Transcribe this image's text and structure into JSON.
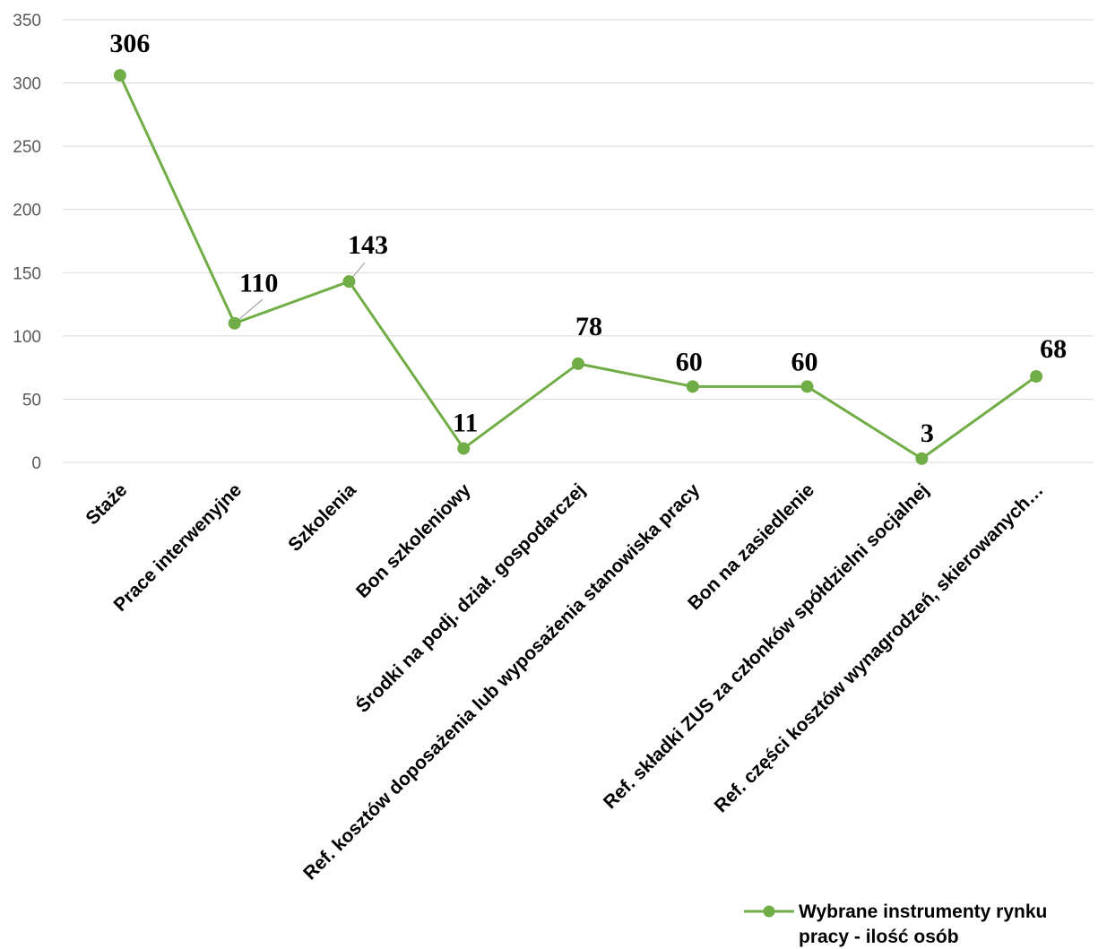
{
  "chart_data": {
    "type": "line",
    "categories": [
      "Staże",
      "Prace interwenyjne",
      "Szkolenia",
      "Bon szkoleniowy",
      "Środki na podj. dział. gospodarczej",
      "Ref. kosztów doposażenia lub wyposażenia stanowiska pracy",
      "Bon na zasiedlenie",
      "Ref. składki ZUS za członków spółdzielni socjalnej",
      "Ref. części kosztów wynagrodzeń,  skierowanych…"
    ],
    "series": [
      {
        "name_line1": "Wybrane instrumenty rynku",
        "name_line2": "pracy - ilość osób",
        "values": [
          306,
          110,
          143,
          11,
          78,
          60,
          60,
          3,
          68
        ]
      }
    ],
    "data_labels": [
      "306",
      "110",
      "143",
      "11",
      "78",
      "60",
      "60",
      "3",
      "68"
    ],
    "yticks": [
      "0",
      "50",
      "100",
      "150",
      "200",
      "250",
      "300",
      "350"
    ],
    "ylim": [
      0,
      350
    ],
    "grid": true,
    "legend_position": "bottom-right",
    "line_color": "#70ad47",
    "grid_color": "#d9d9d9"
  }
}
